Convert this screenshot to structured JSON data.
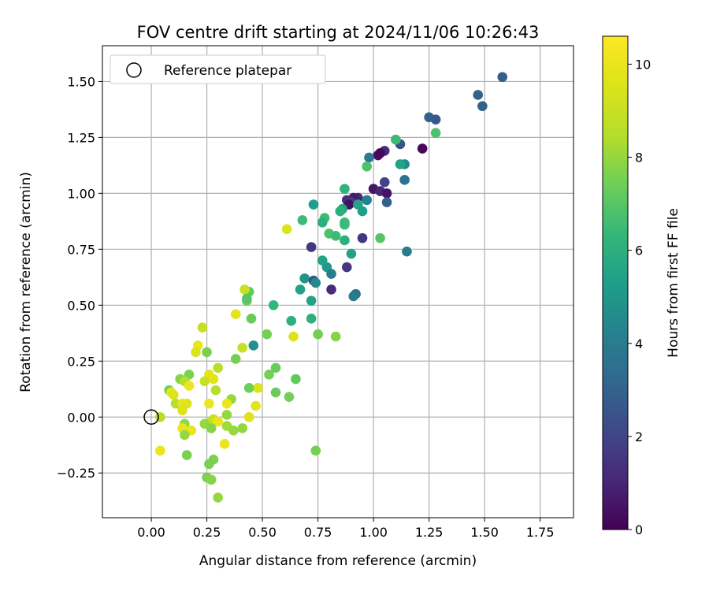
{
  "chart_data": {
    "type": "scatter",
    "title": "FOV centre drift starting at 2024/11/06 10:26:43",
    "xlabel": "Angular distance from reference (arcmin)",
    "ylabel": "Rotation from reference (arcmin)",
    "xlim": [
      -0.22,
      1.9
    ],
    "ylim": [
      -0.45,
      1.66
    ],
    "xticks": [
      0.0,
      0.25,
      0.5,
      0.75,
      1.0,
      1.25,
      1.5,
      1.75
    ],
    "xtick_labels": [
      "0.00",
      "0.25",
      "0.50",
      "0.75",
      "1.00",
      "1.25",
      "1.50",
      "1.75"
    ],
    "yticks": [
      -0.25,
      0.0,
      0.25,
      0.5,
      0.75,
      1.0,
      1.25,
      1.5
    ],
    "ytick_labels": [
      "−0.25",
      "0.00",
      "0.25",
      "0.50",
      "0.75",
      "1.00",
      "1.25",
      "1.50"
    ],
    "grid": true,
    "legend": {
      "placement": "upper-left",
      "entries": [
        {
          "label": "Reference platepar",
          "marker": "open-circle"
        }
      ],
      "reference_point": [
        0.0,
        0.0
      ]
    },
    "colorbar": {
      "label": "Hours from first FF file",
      "colormap": "viridis",
      "range": [
        0,
        10.6
      ],
      "ticks": [
        0,
        2,
        4,
        6,
        8,
        10
      ],
      "tick_labels": [
        "0",
        "2",
        "4",
        "6",
        "8",
        "10"
      ]
    },
    "series": [
      {
        "points": [
          [
            1.58,
            1.52,
            2.8
          ],
          [
            1.47,
            1.44,
            3.0
          ],
          [
            1.49,
            1.39,
            3.0
          ],
          [
            1.25,
            1.34,
            2.9
          ],
          [
            1.28,
            1.33,
            2.7
          ],
          [
            1.22,
            1.2,
            0.2
          ],
          [
            1.02,
            1.17,
            0.4
          ],
          [
            1.05,
            1.19,
            1.2
          ],
          [
            1.03,
            1.18,
            0.2
          ],
          [
            1.12,
            1.22,
            2.5
          ],
          [
            0.98,
            1.16,
            4.0
          ],
          [
            1.14,
            1.13,
            4.5
          ],
          [
            1.12,
            1.13,
            5.5
          ],
          [
            1.1,
            1.24,
            6.5
          ],
          [
            1.28,
            1.27,
            6.8
          ],
          [
            0.97,
            1.12,
            6.8
          ],
          [
            1.05,
            1.05,
            2.0
          ],
          [
            1.14,
            1.06,
            3.5
          ],
          [
            1.0,
            1.02,
            1.5
          ],
          [
            1.0,
            1.02,
            0.5
          ],
          [
            1.03,
            1.01,
            1.0
          ],
          [
            1.06,
            1.0,
            0.5
          ],
          [
            1.06,
            0.96,
            3.0
          ],
          [
            0.93,
            0.98,
            1.0
          ],
          [
            0.91,
            0.98,
            0.7
          ],
          [
            0.88,
            0.97,
            1.2
          ],
          [
            0.9,
            0.96,
            1.8
          ],
          [
            0.89,
            0.95,
            0.4
          ],
          [
            0.87,
            1.02,
            6.2
          ],
          [
            0.93,
            0.95,
            5.5
          ],
          [
            0.95,
            0.92,
            5.3
          ],
          [
            0.97,
            0.97,
            4.2
          ],
          [
            0.73,
            0.95,
            5.3
          ],
          [
            0.86,
            0.93,
            5.5
          ],
          [
            0.85,
            0.92,
            6.0
          ],
          [
            0.68,
            0.88,
            6.5
          ],
          [
            0.78,
            0.89,
            6.5
          ],
          [
            0.77,
            0.87,
            6.0
          ],
          [
            0.87,
            0.87,
            6.5
          ],
          [
            0.87,
            0.86,
            6.5
          ],
          [
            0.8,
            0.82,
            6.8
          ],
          [
            0.83,
            0.81,
            6.5
          ],
          [
            0.87,
            0.79,
            6.0
          ],
          [
            0.95,
            0.8,
            1.5
          ],
          [
            1.03,
            0.8,
            7.0
          ],
          [
            0.72,
            0.76,
            1.5
          ],
          [
            0.9,
            0.73,
            5.5
          ],
          [
            1.15,
            0.74,
            4.0
          ],
          [
            0.77,
            0.7,
            5.5
          ],
          [
            0.79,
            0.67,
            5.2
          ],
          [
            0.81,
            0.64,
            4.0
          ],
          [
            0.88,
            0.67,
            1.5
          ],
          [
            0.69,
            0.62,
            5.0
          ],
          [
            0.73,
            0.61,
            2.5
          ],
          [
            0.74,
            0.6,
            4.5
          ],
          [
            0.67,
            0.57,
            5.5
          ],
          [
            0.81,
            0.57,
            1.2
          ],
          [
            0.92,
            0.55,
            3.5
          ],
          [
            0.91,
            0.54,
            4.0
          ],
          [
            0.72,
            0.52,
            5.5
          ],
          [
            0.61,
            0.84,
            9.5
          ],
          [
            0.44,
            0.56,
            7.2
          ],
          [
            0.43,
            0.52,
            7.3
          ],
          [
            0.42,
            0.57,
            9.0
          ],
          [
            0.43,
            0.53,
            7.0
          ],
          [
            0.55,
            0.5,
            6.3
          ],
          [
            0.38,
            0.46,
            9.8
          ],
          [
            0.45,
            0.44,
            7.3
          ],
          [
            0.63,
            0.43,
            6.0
          ],
          [
            0.72,
            0.44,
            6.0
          ],
          [
            0.23,
            0.4,
            9.0
          ],
          [
            0.52,
            0.37,
            7.5
          ],
          [
            0.64,
            0.36,
            9.5
          ],
          [
            0.75,
            0.37,
            7.5
          ],
          [
            0.83,
            0.36,
            7.8
          ],
          [
            0.21,
            0.32,
            10.0
          ],
          [
            0.46,
            0.32,
            4.8
          ],
          [
            0.41,
            0.31,
            9.0
          ],
          [
            0.25,
            0.29,
            7.6
          ],
          [
            0.2,
            0.29,
            9.5
          ],
          [
            0.38,
            0.26,
            7.5
          ],
          [
            0.3,
            0.22,
            8.5
          ],
          [
            0.56,
            0.22,
            7.3
          ],
          [
            0.26,
            0.19,
            9.8
          ],
          [
            0.17,
            0.19,
            7.6
          ],
          [
            0.28,
            0.17,
            9.8
          ],
          [
            0.13,
            0.17,
            7.8
          ],
          [
            0.53,
            0.19,
            7.5
          ],
          [
            0.65,
            0.17,
            7.2
          ],
          [
            0.15,
            0.16,
            8.5
          ],
          [
            0.24,
            0.16,
            9.0
          ],
          [
            0.17,
            0.14,
            10.0
          ],
          [
            0.48,
            0.13,
            9.5
          ],
          [
            0.44,
            0.13,
            7.4
          ],
          [
            0.29,
            0.12,
            8.5
          ],
          [
            0.08,
            0.12,
            7.5
          ],
          [
            0.09,
            0.11,
            10.0
          ],
          [
            0.1,
            0.1,
            9.5
          ],
          [
            0.56,
            0.11,
            7.3
          ],
          [
            0.62,
            0.09,
            7.5
          ],
          [
            0.36,
            0.08,
            8.0
          ],
          [
            0.11,
            0.06,
            8.5
          ],
          [
            0.14,
            0.06,
            10.0
          ],
          [
            0.16,
            0.06,
            9.7
          ],
          [
            0.26,
            0.06,
            10.0
          ],
          [
            0.34,
            0.06,
            10.0
          ],
          [
            0.14,
            0.03,
            9.6
          ],
          [
            0.47,
            0.05,
            9.7
          ],
          [
            0.04,
            0.0,
            8.5
          ],
          [
            0.34,
            0.01,
            8.0
          ],
          [
            0.44,
            0.0,
            9.6
          ],
          [
            0.28,
            -0.01,
            9.0
          ],
          [
            0.27,
            -0.02,
            9.0
          ],
          [
            0.3,
            -0.02,
            10.0
          ],
          [
            0.15,
            -0.03,
            8.0
          ],
          [
            0.24,
            -0.03,
            8.0
          ],
          [
            0.34,
            -0.04,
            8.2
          ],
          [
            0.27,
            -0.05,
            7.8
          ],
          [
            0.41,
            -0.05,
            8.0
          ],
          [
            0.14,
            -0.05,
            10.0
          ],
          [
            0.18,
            -0.06,
            10.0
          ],
          [
            0.37,
            -0.06,
            8.0
          ],
          [
            0.15,
            -0.08,
            8.0
          ],
          [
            0.33,
            -0.12,
            10.0
          ],
          [
            0.04,
            -0.15,
            10.0
          ],
          [
            0.16,
            -0.17,
            7.6
          ],
          [
            0.74,
            -0.15,
            7.5
          ],
          [
            0.28,
            -0.19,
            7.6
          ],
          [
            0.26,
            -0.21,
            7.6
          ],
          [
            0.25,
            -0.27,
            7.6
          ],
          [
            0.27,
            -0.28,
            7.8
          ],
          [
            0.3,
            -0.36,
            8.0
          ]
        ]
      }
    ]
  }
}
